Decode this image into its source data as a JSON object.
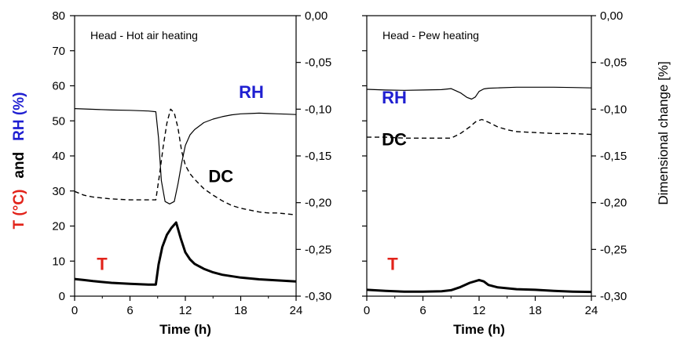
{
  "colors": {
    "rh": "#1f1fd1",
    "t": "#e2231a",
    "black": "#000000"
  },
  "y_axis_label": {
    "t_part": "T (°C)",
    "and_part": "and",
    "rh_part": "RH (%)"
  },
  "right_axis_label": "Dimensional change [%]",
  "chart_data": [
    {
      "type": "line",
      "title": "Head - Hot air heating",
      "xlabel": "Time (h)",
      "xlim": [
        0,
        24
      ],
      "xticks": [
        0,
        6,
        12,
        18,
        24
      ],
      "ylim": [
        0,
        80
      ],
      "yticks": [
        0,
        10,
        20,
        30,
        40,
        50,
        60,
        70,
        80
      ],
      "y2lim": [
        -0.3,
        0.0
      ],
      "y2ticks": [
        "0,00",
        "-0,05",
        "-0,10",
        "-0,15",
        "-0,20",
        "-0,25",
        "-0,30"
      ],
      "labels": {
        "rh": "RH",
        "dc": "DC",
        "t": "T"
      },
      "series": [
        {
          "name": "RH",
          "axis": "left",
          "style": "solid",
          "x": [
            0,
            2,
            4,
            6,
            8,
            8.8,
            9.1,
            9.4,
            9.8,
            10.3,
            10.8,
            11.2,
            11.6,
            12.0,
            12.5,
            13,
            13.5,
            14,
            15,
            16,
            17,
            18,
            19,
            20,
            21,
            22,
            23,
            24
          ],
          "y": [
            53.5,
            53.3,
            53.1,
            53.0,
            52.8,
            52.6,
            45,
            33,
            27,
            26.3,
            27,
            32,
            38,
            43,
            46,
            47.5,
            48.5,
            49.5,
            50.5,
            51.2,
            51.7,
            52.0,
            52.1,
            52.2,
            52.1,
            52.0,
            51.9,
            51.8
          ]
        },
        {
          "name": "DC",
          "axis": "right",
          "style": "dashed",
          "x": [
            0,
            1,
            2,
            4,
            6,
            8,
            8.8,
            9.2,
            9.6,
            10.0,
            10.4,
            10.8,
            11.2,
            11.6,
            12.0,
            12.5,
            13,
            14,
            15,
            16,
            17,
            18,
            19,
            20,
            21,
            22,
            23,
            24
          ],
          "y": [
            -0.188,
            -0.192,
            -0.194,
            -0.196,
            -0.197,
            -0.197,
            -0.197,
            -0.17,
            -0.14,
            -0.115,
            -0.1,
            -0.104,
            -0.12,
            -0.145,
            -0.16,
            -0.169,
            -0.175,
            -0.185,
            -0.192,
            -0.198,
            -0.203,
            -0.206,
            -0.208,
            -0.21,
            -0.211,
            -0.211,
            -0.212,
            -0.213
          ]
        },
        {
          "name": "T",
          "axis": "left",
          "style": "thick",
          "x": [
            0,
            1,
            2,
            4,
            6,
            8,
            8.8,
            9.1,
            9.5,
            10.0,
            10.5,
            11.0,
            11.5,
            12,
            12.5,
            13,
            14,
            15,
            16,
            18,
            20,
            22,
            24
          ],
          "y": [
            4.9,
            4.6,
            4.3,
            3.8,
            3.5,
            3.3,
            3.3,
            9,
            14,
            17.5,
            19.5,
            21.0,
            16.5,
            12.5,
            10.5,
            9.2,
            7.8,
            6.8,
            6.1,
            5.3,
            4.8,
            4.5,
            4.2
          ]
        }
      ]
    },
    {
      "type": "line",
      "title": "Head - Pew heating",
      "xlabel": "Time (h)",
      "xlim": [
        0,
        24
      ],
      "xticks": [
        0,
        6,
        12,
        18,
        24
      ],
      "ylim": [
        0,
        80
      ],
      "yticks": [
        0,
        10,
        20,
        30,
        40,
        50,
        60,
        70,
        80
      ],
      "y2lim": [
        -0.3,
        0.0
      ],
      "y2ticks": [
        "0,00",
        "-0,05",
        "-0,10",
        "-0,15",
        "-0,20",
        "-0,25",
        "-0,30"
      ],
      "labels": {
        "rh": "RH",
        "dc": "DC",
        "t": "T"
      },
      "series": [
        {
          "name": "RH",
          "axis": "left",
          "style": "solid",
          "x": [
            0,
            2,
            4,
            6,
            8,
            9,
            10,
            10.7,
            11.2,
            11.6,
            12,
            12.5,
            13,
            14,
            16,
            18,
            20,
            22,
            24
          ],
          "y": [
            59.0,
            58.8,
            58.7,
            58.8,
            58.9,
            59.2,
            58.0,
            56.7,
            56.2,
            56.8,
            58.4,
            59.1,
            59.3,
            59.4,
            59.6,
            59.6,
            59.6,
            59.5,
            59.4
          ]
        },
        {
          "name": "DC",
          "axis": "right",
          "style": "dashed",
          "x": [
            0,
            2,
            4,
            6,
            8,
            9,
            10,
            11,
            11.7,
            12.3,
            13,
            14,
            15,
            16,
            18,
            20,
            22,
            24
          ],
          "y": [
            -0.13,
            -0.13,
            -0.131,
            -0.131,
            -0.131,
            -0.131,
            -0.126,
            -0.119,
            -0.113,
            -0.111,
            -0.114,
            -0.119,
            -0.122,
            -0.124,
            -0.125,
            -0.126,
            -0.126,
            -0.127
          ]
        },
        {
          "name": "T",
          "axis": "left",
          "style": "thick",
          "x": [
            0,
            2,
            4,
            6,
            8,
            9,
            10,
            11,
            12,
            12.5,
            13,
            14,
            16,
            18,
            20,
            22,
            24
          ],
          "y": [
            1.8,
            1.5,
            1.3,
            1.3,
            1.4,
            1.7,
            2.6,
            3.8,
            4.6,
            4.2,
            3.2,
            2.5,
            2.0,
            1.8,
            1.5,
            1.3,
            1.2
          ]
        }
      ]
    }
  ]
}
